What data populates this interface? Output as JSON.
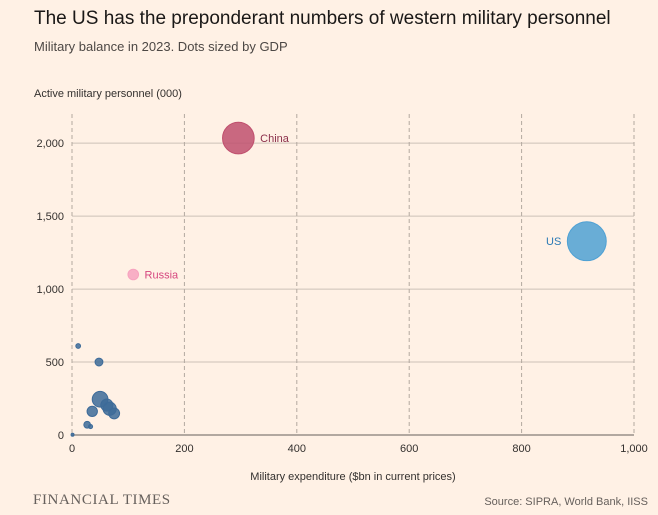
{
  "chart_data": {
    "type": "scatter",
    "title": "The US has the preponderant numbers of western military personnel",
    "subtitle": "Military balance in 2023. Dots sized by GDP",
    "xlabel": "Military expenditure ($bn in current prices)",
    "ylabel": "Active military personnel (000)",
    "xlim": [
      0,
      1000
    ],
    "ylim": [
      0,
      2200
    ],
    "x_ticks": [
      0,
      200,
      400,
      600,
      800,
      1000
    ],
    "x_tick_labels": [
      "0",
      "200",
      "400",
      "600",
      "800",
      "1,000"
    ],
    "y_ticks": [
      0,
      500,
      1000,
      1500,
      2000
    ],
    "y_tick_labels": [
      "0",
      "500",
      "1,000",
      "1,500",
      "2,000"
    ],
    "grid": {
      "x": "dashed",
      "y": "solid"
    },
    "points": [
      {
        "label": "China",
        "x": 296,
        "y": 2035,
        "size": 17.8,
        "color": "#c0506e"
      },
      {
        "label": "US",
        "x": 916,
        "y": 1328,
        "size": 26.9,
        "color": "#4fa1d4"
      },
      {
        "label": "Russia",
        "x": 109,
        "y": 1100,
        "size": 2.0,
        "color": "#f7a3bf"
      },
      {
        "label": "",
        "x": 11,
        "y": 610,
        "size": 0.4,
        "color": "#3d6b99"
      },
      {
        "label": "",
        "x": 48,
        "y": 500,
        "size": 1.1,
        "color": "#3d6b99"
      },
      {
        "label": "",
        "x": 50,
        "y": 245,
        "size": 4.4,
        "color": "#3d6b99"
      },
      {
        "label": "",
        "x": 62,
        "y": 205,
        "size": 2.6,
        "color": "#3d6b99"
      },
      {
        "label": "",
        "x": 67,
        "y": 180,
        "size": 3.1,
        "color": "#3d6b99"
      },
      {
        "label": "",
        "x": 75,
        "y": 148,
        "size": 2.1,
        "color": "#3d6b99"
      },
      {
        "label": "",
        "x": 36,
        "y": 162,
        "size": 1.9,
        "color": "#3d6b99"
      },
      {
        "label": "",
        "x": 27,
        "y": 70,
        "size": 0.8,
        "color": "#3d6b99"
      },
      {
        "label": "",
        "x": 33,
        "y": 58,
        "size": 0.3,
        "color": "#3d6b99"
      },
      {
        "label": "",
        "x": 1,
        "y": 2,
        "size": 0.05,
        "color": "#3d6b99"
      }
    ]
  },
  "footer": {
    "brand": "FINANCIAL TIMES",
    "source": "Source: SIPRA, World Bank, IISS"
  }
}
